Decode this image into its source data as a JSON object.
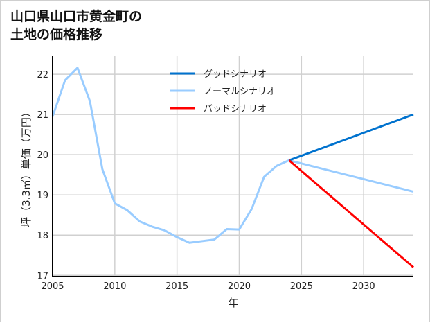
{
  "chart_data": {
    "type": "line",
    "title_lines": [
      "山口県山口市黄金町の",
      "土地の価格推移"
    ],
    "xlabel": "年",
    "ylabel": "坪（3.3㎡）単価（万円）",
    "xlim": [
      2005,
      2034
    ],
    "ylim": [
      16.97,
      22.45
    ],
    "xticks": [
      2005,
      2010,
      2015,
      2020,
      2025,
      2030
    ],
    "yticks": [
      17,
      18,
      19,
      20,
      21,
      22
    ],
    "grid": true,
    "legend_position": "top-center",
    "series": [
      {
        "name": "グッドシナリオ",
        "color": "#0072CE",
        "x": [
          2024,
          2034
        ],
        "y": [
          19.86,
          21.0
        ]
      },
      {
        "name": "ノーマルシナリオ",
        "color": "#99CCFF",
        "x": [
          2005,
          2006,
          2007,
          2008,
          2009,
          2010,
          2011,
          2012,
          2013,
          2014,
          2015,
          2016,
          2017,
          2018,
          2019,
          2020,
          2021,
          2022,
          2023,
          2024,
          2034
        ],
        "y": [
          20.95,
          21.85,
          22.16,
          21.33,
          19.64,
          18.79,
          18.62,
          18.34,
          18.21,
          18.12,
          17.95,
          17.81,
          17.85,
          17.89,
          18.15,
          18.14,
          18.65,
          19.45,
          19.72,
          19.86,
          19.08
        ]
      },
      {
        "name": "バッドシナリオ",
        "color": "#FF0000",
        "x": [
          2024,
          2034
        ],
        "y": [
          19.86,
          17.2
        ]
      }
    ]
  }
}
